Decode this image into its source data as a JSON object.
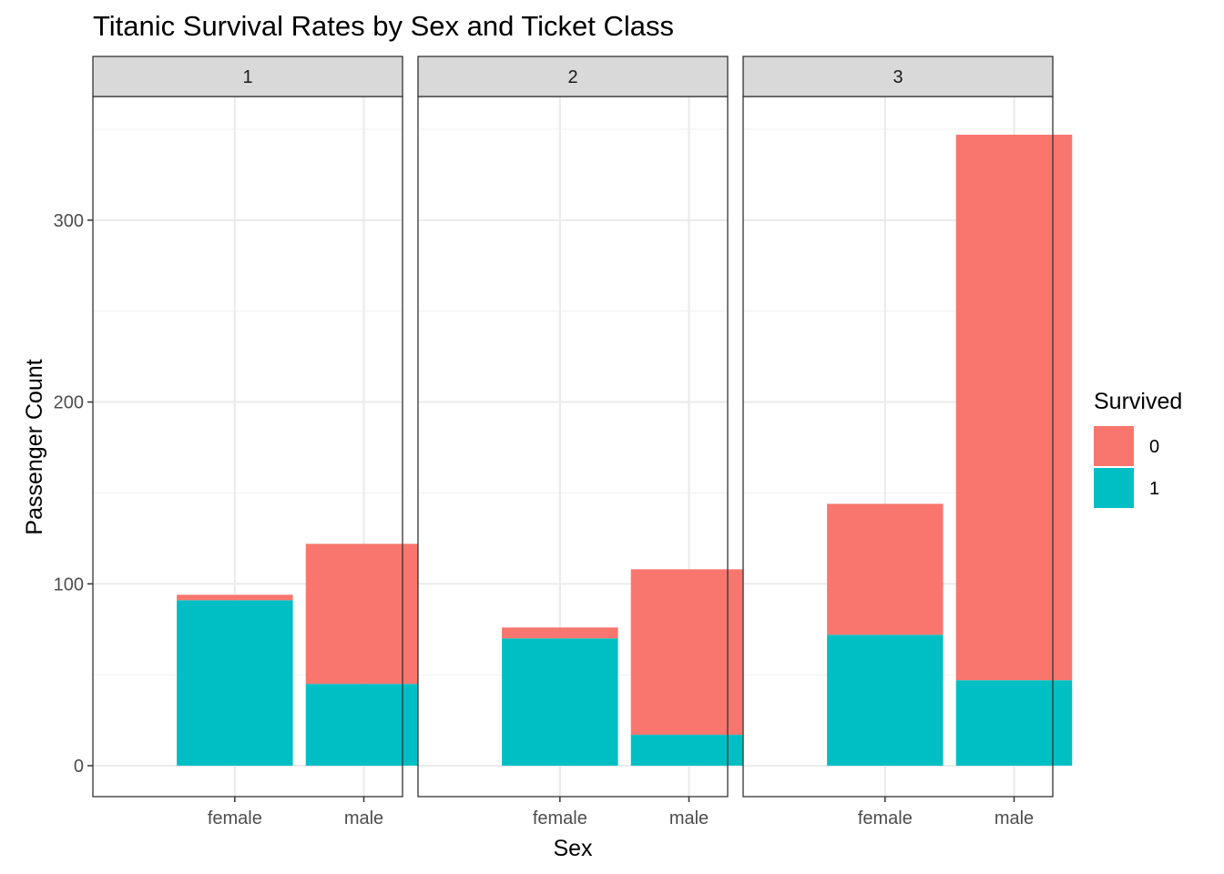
{
  "chart_data": {
    "type": "bar",
    "stacked": true,
    "faceted": true,
    "title": "Titanic Survival Rates by Sex and Ticket Class",
    "xlabel": "Sex",
    "ylabel": "Passenger Count",
    "categories": [
      "female",
      "male"
    ],
    "ylim": [
      -17,
      368
    ],
    "yticks": [
      0,
      100,
      200,
      300
    ],
    "grid": true,
    "legend": {
      "title": "Survived",
      "position": "right",
      "entries": [
        {
          "label": "0",
          "color": "#F8766D"
        },
        {
          "label": "1",
          "color": "#00BFC4"
        }
      ]
    },
    "panels": [
      {
        "label": "1",
        "stacks": [
          {
            "category": "female",
            "survived_0": 3,
            "survived_1": 91
          },
          {
            "category": "male",
            "survived_0": 77,
            "survived_1": 45
          }
        ]
      },
      {
        "label": "2",
        "stacks": [
          {
            "category": "female",
            "survived_0": 6,
            "survived_1": 70
          },
          {
            "category": "male",
            "survived_0": 91,
            "survived_1": 17
          }
        ]
      },
      {
        "label": "3",
        "stacks": [
          {
            "category": "female",
            "survived_0": 72,
            "survived_1": 72
          },
          {
            "category": "male",
            "survived_0": 300,
            "survived_1": 47
          }
        ]
      }
    ]
  }
}
